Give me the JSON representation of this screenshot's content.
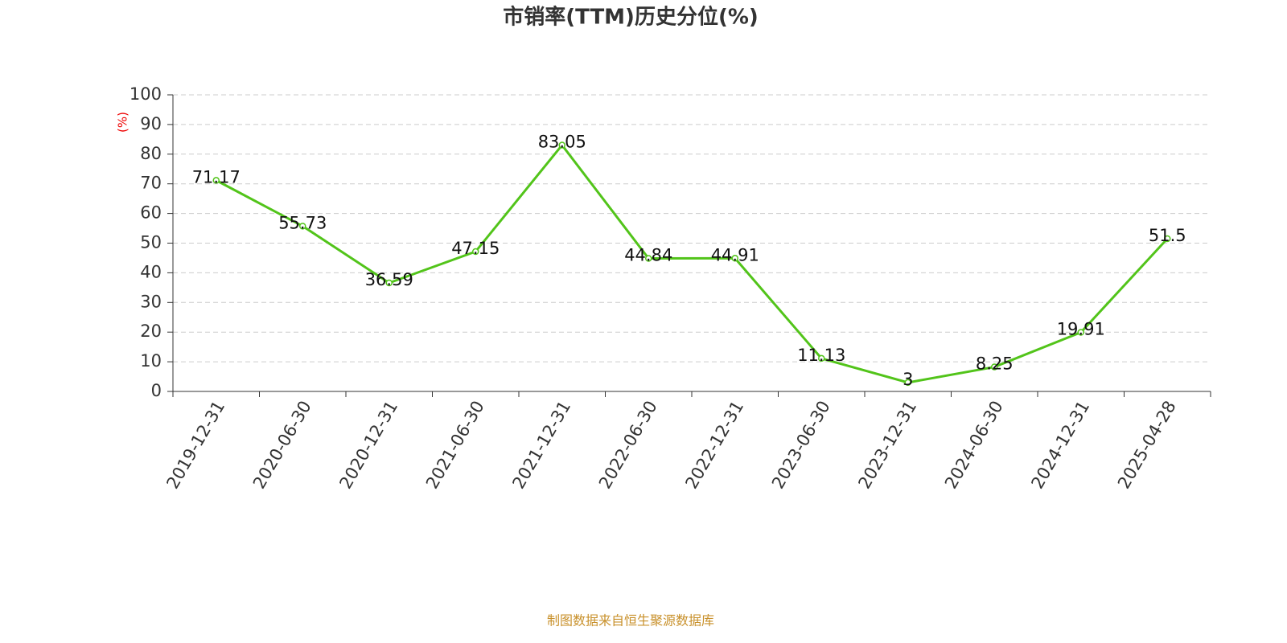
{
  "chart_data": {
    "type": "line",
    "title": "市销率(TTM)历史分位(%)",
    "y_label": "(%)",
    "categories": [
      "2019-12-31",
      "2020-06-30",
      "2020-12-31",
      "2021-06-30",
      "2021-12-31",
      "2022-06-30",
      "2022-12-31",
      "2023-06-30",
      "2023-12-31",
      "2024-06-30",
      "2024-12-31",
      "2025-04-28"
    ],
    "values": [
      71.17,
      55.73,
      36.59,
      47.15,
      83.05,
      44.84,
      44.91,
      11.13,
      3,
      8.25,
      19.91,
      51.5
    ],
    "color": "#52c41a",
    "ylim": [
      0,
      100
    ],
    "yticks": [
      0,
      10,
      20,
      30,
      40,
      50,
      60,
      70,
      80,
      90,
      100
    ],
    "grid": true,
    "source": "制图数据来自恒生聚源数据库"
  }
}
